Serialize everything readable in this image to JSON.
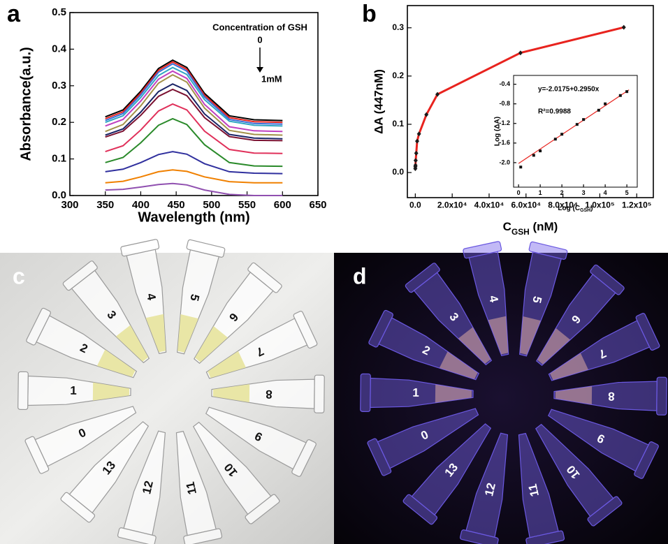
{
  "chart_data": [
    {
      "type": "line",
      "panel": "a",
      "xlabel": "Wavelength (nm)",
      "ylabel": "Absorbance(a.u.)",
      "annotations": [
        "Concentration of GSH",
        "0",
        "1mM"
      ],
      "xlim": [
        300,
        650
      ],
      "xticks": [
        300,
        350,
        400,
        450,
        500,
        550,
        600,
        650
      ],
      "ylim": [
        0,
        0.5
      ],
      "yticks": [
        {
          "value": 0,
          "label": "0.0"
        },
        0.1,
        0.2,
        0.3,
        0.4,
        0.5
      ],
      "x": [
        350,
        375,
        400,
        425,
        445,
        465,
        490,
        525,
        560,
        600
      ],
      "series": [
        {
          "color": "#000000",
          "values": [
            0.215,
            0.234,
            0.285,
            0.347,
            0.37,
            0.35,
            0.279,
            0.218,
            0.207,
            0.205
          ]
        },
        {
          "color": "#e8231e",
          "values": [
            0.21,
            0.229,
            0.28,
            0.342,
            0.365,
            0.345,
            0.274,
            0.213,
            0.202,
            0.2
          ]
        },
        {
          "color": "#3a6fd8",
          "values": [
            0.205,
            0.224,
            0.275,
            0.337,
            0.36,
            0.34,
            0.269,
            0.208,
            0.197,
            0.195
          ]
        },
        {
          "color": "#2fa6c2",
          "values": [
            0.2,
            0.218,
            0.268,
            0.328,
            0.35,
            0.331,
            0.262,
            0.203,
            0.192,
            0.19
          ]
        },
        {
          "color": "#c040c0",
          "values": [
            0.19,
            0.208,
            0.258,
            0.318,
            0.34,
            0.32,
            0.249,
            0.188,
            0.177,
            0.175
          ]
        },
        {
          "color": "#a3924a",
          "values": [
            0.175,
            0.194,
            0.245,
            0.307,
            0.33,
            0.31,
            0.239,
            0.178,
            0.167,
            0.165
          ]
        },
        {
          "color": "#1a2466",
          "values": [
            0.165,
            0.182,
            0.228,
            0.284,
            0.305,
            0.287,
            0.223,
            0.167,
            0.157,
            0.155
          ]
        },
        {
          "color": "#7a1030",
          "values": [
            0.16,
            0.176,
            0.219,
            0.271,
            0.29,
            0.273,
            0.213,
            0.161,
            0.151,
            0.15
          ]
        },
        {
          "color": "#e0305a",
          "values": [
            0.12,
            0.136,
            0.179,
            0.231,
            0.25,
            0.234,
            0.176,
            0.126,
            0.116,
            0.115
          ]
        },
        {
          "color": "#2a8a2a",
          "values": [
            0.09,
            0.104,
            0.144,
            0.192,
            0.21,
            0.194,
            0.139,
            0.09,
            0.081,
            0.08
          ]
        },
        {
          "color": "#30309e",
          "values": [
            0.065,
            0.072,
            0.09,
            0.112,
            0.12,
            0.113,
            0.087,
            0.065,
            0.061,
            0.06
          ]
        },
        {
          "color": "#f08000",
          "values": [
            0.035,
            0.039,
            0.051,
            0.065,
            0.07,
            0.066,
            0.051,
            0.038,
            0.035,
            0.035
          ]
        },
        {
          "color": "#9050b0",
          "values": [
            0.015,
            0.017,
            0.023,
            0.03,
            0.033,
            0.029,
            0.015,
            0.003,
            0,
            0
          ]
        }
      ]
    },
    {
      "type": "line",
      "panel": "b",
      "xlabel": [
        "C",
        "GSH",
        " (nM)"
      ],
      "ylabel": "ΔA (447nM)",
      "xlim": [
        -4300,
        129000
      ],
      "xticks": [
        {
          "value": 0,
          "label": "0.0"
        },
        {
          "value": 20000,
          "label": "2.0x10⁴"
        },
        {
          "value": 40000,
          "label": "4.0x10⁴"
        },
        {
          "value": 60000,
          "label": "6.0x10⁴"
        },
        {
          "value": 80000,
          "label": "8.0x10⁴"
        },
        {
          "value": 100000,
          "label": "1.0x10⁵"
        },
        {
          "value": 120000,
          "label": "1.2x10⁵"
        }
      ],
      "ylim": [
        -0.052,
        0.346
      ],
      "yticks": [
        {
          "value": 0,
          "label": "0.0"
        },
        0.1,
        0.2,
        0.3
      ],
      "x": [
        10,
        50,
        100,
        200,
        500,
        1000,
        2000,
        6000,
        12000,
        57000,
        113000
      ],
      "series": [
        {
          "color": "#e8231e",
          "marker_color": "#1a1a1a",
          "values": [
            0.008,
            0.012,
            0.015,
            0.025,
            0.04,
            0.065,
            0.08,
            0.12,
            0.162,
            0.248,
            0.301
          ]
        }
      ]
    },
    {
      "type": "scatter",
      "xlabel": [
        "Log (C",
        "GSH",
        ")"
      ],
      "ylabel": "Log (ΔA)",
      "annotations": [
        "y=-2.0175+0.2950x",
        "R²=0.9988"
      ],
      "xlim": [
        -0.23,
        5.48
      ],
      "xticks": [
        0,
        1,
        2,
        3,
        4,
        5
      ],
      "ylim": [
        -2.5,
        -0.22
      ],
      "yticks": [
        {
          "value": -2,
          "label": "-2.0"
        },
        -1.6,
        -1.2,
        -0.8,
        -0.4
      ],
      "x": [
        0.1,
        0.7,
        1,
        1.7,
        2,
        2.7,
        3,
        3.7,
        4,
        4.7,
        5
      ],
      "values": [
        -2.09,
        -1.85,
        -1.76,
        -1.52,
        -1.42,
        -1.22,
        -1.12,
        -0.93,
        -0.8,
        -0.63,
        -0.55
      ],
      "color": "#111111",
      "fit": {
        "x": [
          0,
          5.1
        ],
        "values": [
          -2.0175,
          -0.513
        ],
        "color": "#e8231e"
      }
    }
  ],
  "photos": [
    {
      "panel": "c",
      "tubes": [
        "0",
        "1",
        "2",
        "3",
        "4",
        "5",
        "6",
        "7",
        "8",
        "9",
        "10",
        "11",
        "12",
        "13"
      ]
    },
    {
      "panel": "d",
      "tubes": [
        "0",
        "1",
        "2",
        "3",
        "4",
        "5",
        "6",
        "7",
        "8",
        "9",
        "10",
        "11",
        "12",
        "13"
      ]
    }
  ]
}
